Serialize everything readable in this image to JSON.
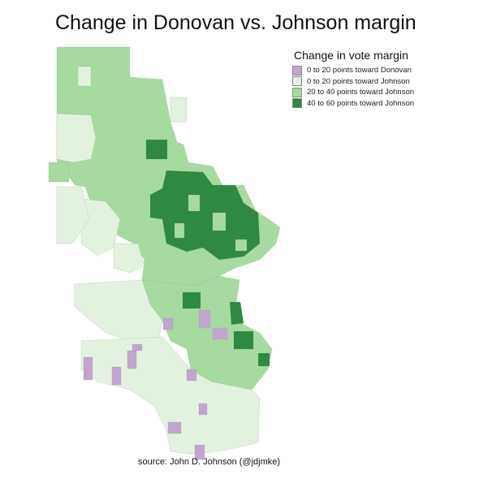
{
  "title": "Change in Donovan vs. Johnson margin",
  "legend": {
    "title": "Change in vote margin",
    "items": [
      {
        "label": "0 to 20 points toward Donovan",
        "color": "#c2a5cf"
      },
      {
        "label": "0 to 20 points toward Johnson",
        "color": "#e3f2df"
      },
      {
        "label": "20 to 40 points toward Johnson",
        "color": "#a6dba0"
      },
      {
        "label": "40 to 60 points toward Johnson",
        "color": "#2d8a3e"
      }
    ]
  },
  "source": "source: John D. Johnson (@jdjmke)"
}
